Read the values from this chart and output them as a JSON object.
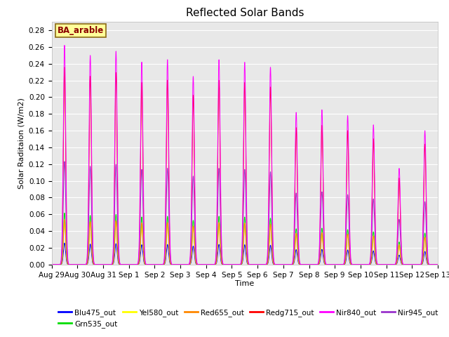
{
  "title": "Reflected Solar Bands",
  "xlabel": "Time",
  "ylabel": "Solar Raditaion (W/m2)",
  "ylim": [
    0.0,
    0.29
  ],
  "yticks": [
    0.0,
    0.02,
    0.04,
    0.06,
    0.08,
    0.1,
    0.12,
    0.14,
    0.16,
    0.18,
    0.2,
    0.22,
    0.24,
    0.26,
    0.28
  ],
  "xtick_labels": [
    "Aug 29",
    "Aug 30",
    "Aug 31",
    "Sep 1",
    "Sep 2",
    "Sep 3",
    "Sep 4",
    "Sep 5",
    "Sep 6",
    "Sep 7",
    "Sep 8",
    "Sep 9",
    "Sep 10",
    "Sep 11",
    "Sep 12",
    "Sep 13"
  ],
  "legend_label": "BA_arable",
  "legend_box_facecolor": "#FFFF99",
  "legend_box_edgecolor": "#8B6914",
  "series_order": [
    "Blu475_out",
    "Grn535_out",
    "Yel580_out",
    "Red655_out",
    "Redg715_out",
    "Nir945_out",
    "Nir840_out"
  ],
  "legend_order": [
    "Blu475_out",
    "Grn535_out",
    "Yel580_out",
    "Red655_out",
    "Redg715_out",
    "Nir840_out",
    "Nir945_out"
  ],
  "series": {
    "Blu475_out": {
      "color": "#0000FF"
    },
    "Grn535_out": {
      "color": "#00DD00"
    },
    "Yel580_out": {
      "color": "#FFFF00"
    },
    "Red655_out": {
      "color": "#FF8800"
    },
    "Redg715_out": {
      "color": "#FF0000"
    },
    "Nir840_out": {
      "color": "#FF00FF"
    },
    "Nir945_out": {
      "color": "#9933CC"
    }
  },
  "nir840_peaks": [
    0.262,
    0.25,
    0.255,
    0.242,
    0.245,
    0.225,
    0.245,
    0.242,
    0.236,
    0.182,
    0.185,
    0.178,
    0.167,
    0.115,
    0.16,
    0.0
  ],
  "scales": {
    "Blu475_out": 0.098,
    "Grn535_out": 0.235,
    "Yel580_out": 0.205,
    "Red655_out": 0.205,
    "Redg715_out": 0.9,
    "Nir840_out": 1.0,
    "Nir945_out": 0.47
  },
  "peak_widths": {
    "Blu475_out": 0.042,
    "Grn535_out": 0.043,
    "Yel580_out": 0.043,
    "Red655_out": 0.043,
    "Redg715_out": 0.044,
    "Nir840_out": 0.048,
    "Nir945_out": 0.048
  },
  "days": 15,
  "pts_per_day": 240,
  "background_color": "#E8E8E8",
  "grid_color": "#FFFFFF",
  "title_fontsize": 11,
  "axis_fontsize": 8,
  "tick_fontsize": 7.5
}
